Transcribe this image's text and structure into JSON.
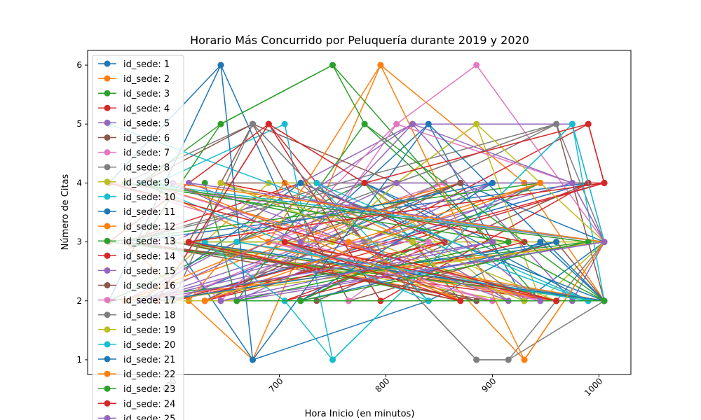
{
  "chart_data": {
    "type": "line",
    "title": "Horario Más Concurrido por Peluquería durante 2019 y 2020",
    "xlabel": "Hora Inicio (en minutos)",
    "ylabel": "Número de Citas",
    "xlim": [
      520,
      1030
    ],
    "ylim": [
      0.75,
      6.25
    ],
    "x_ticks": [
      600,
      700,
      800,
      900,
      1000
    ],
    "x_tick_labels": [
      "600",
      "700",
      "800",
      "900",
      "1000"
    ],
    "y_ticks": [
      1,
      2,
      3,
      4,
      5,
      6
    ],
    "y_tick_labels": [
      "1",
      "2",
      "3",
      "4",
      "5",
      "6"
    ],
    "x_tick_rotation": 45,
    "grid": false,
    "legend_loc": "upper-left",
    "colors": [
      "#1f77b4",
      "#ff7f0e",
      "#2ca02c",
      "#d62728",
      "#9467bd",
      "#8c564b",
      "#e377c2",
      "#7f7f7f",
      "#bcbd22",
      "#17becf"
    ],
    "series": [
      {
        "name": "id_sede: 1",
        "x": [
          540,
          645,
          720,
          840,
          930,
          1005,
          870,
          600,
          990,
          555
        ],
        "y": [
          2,
          6,
          3,
          5,
          2,
          3,
          4,
          2,
          4,
          3
        ]
      },
      {
        "name": "id_sede: 2",
        "x": [
          555,
          675,
          795,
          930,
          1005,
          690,
          570,
          960,
          615,
          885
        ],
        "y": [
          3,
          1,
          6,
          4,
          2,
          3,
          4,
          2,
          3,
          2
        ]
      },
      {
        "name": "id_sede: 3",
        "x": [
          570,
          645,
          750,
          945,
          1005,
          600,
          870,
          780,
          540,
          990
        ],
        "y": [
          4,
          5,
          6,
          2,
          2,
          3,
          2,
          4,
          2,
          3
        ]
      },
      {
        "name": "id_sede: 4",
        "x": [
          585,
          690,
          780,
          990,
          1005,
          630,
          855,
          720,
          555,
          960
        ],
        "y": [
          2,
          5,
          3,
          5,
          4,
          2,
          3,
          4,
          3,
          2
        ]
      },
      {
        "name": "id_sede: 5",
        "x": [
          600,
          720,
          825,
          975,
          1005,
          660,
          900,
          570,
          810,
          945
        ],
        "y": [
          3,
          4,
          5,
          2,
          3,
          2,
          4,
          2,
          3,
          4
        ]
      },
      {
        "name": "id_sede: 6",
        "x": [
          615,
          675,
          810,
          960,
          1005,
          555,
          900,
          735,
          990,
          645
        ],
        "y": [
          3,
          5,
          4,
          5,
          2,
          3,
          2,
          2,
          4,
          4
        ]
      },
      {
        "name": "id_sede: 7",
        "x": [
          630,
          735,
          810,
          885,
          1005,
          570,
          945,
          690,
          855,
          600
        ],
        "y": [
          2,
          3,
          5,
          6,
          3,
          4,
          2,
          3,
          4,
          2
        ]
      },
      {
        "name": "id_sede: 8",
        "x": [
          555,
          675,
          780,
          885,
          915,
          1005,
          960,
          630,
          840,
          720
        ],
        "y": [
          4,
          5,
          3,
          1,
          1,
          3,
          5,
          2,
          2,
          4
        ]
      },
      {
        "name": "id_sede: 9",
        "x": [
          570,
          690,
          810,
          885,
          945,
          1005,
          720,
          600,
          915,
          780
        ],
        "y": [
          2,
          4,
          4,
          5,
          2,
          3,
          3,
          3,
          2,
          4
        ]
      },
      {
        "name": "id_sede: 10",
        "x": [
          585,
          705,
          750,
          975,
          1005,
          615,
          825,
          660,
          990,
          540
        ],
        "y": [
          4,
          5,
          1,
          5,
          2,
          3,
          3,
          3,
          2,
          5
        ]
      },
      {
        "name": "id_sede: 11",
        "x": [
          600,
          675,
          840,
          945,
          1005,
          720,
          570,
          900,
          780,
          990
        ],
        "y": [
          3,
          1,
          2,
          3,
          2,
          4,
          2,
          3,
          4,
          2
        ]
      },
      {
        "name": "id_sede: 12",
        "x": [
          615,
          705,
          825,
          930,
          1005,
          555,
          870,
          660,
          960,
          750
        ],
        "y": [
          2,
          4,
          3,
          1,
          3,
          2,
          4,
          3,
          2,
          3
        ]
      },
      {
        "name": "id_sede: 13",
        "x": [
          630,
          660,
          780,
          900,
          1005,
          540,
          945,
          720,
          840,
          585
        ],
        "y": [
          4,
          2,
          5,
          3,
          2,
          3,
          4,
          2,
          3,
          4
        ]
      },
      {
        "name": "id_sede: 14",
        "x": [
          540,
          690,
          795,
          990,
          1005,
          600,
          855,
          705,
          930,
          645
        ],
        "y": [
          3,
          5,
          2,
          4,
          4,
          2,
          3,
          2,
          3,
          4
        ]
      },
      {
        "name": "id_sede: 15",
        "x": [
          555,
          660,
          825,
          975,
          1005,
          615,
          915,
          735,
          975,
          570
        ],
        "y": [
          2,
          3,
          5,
          5,
          3,
          4,
          2,
          4,
          4,
          2
        ]
      },
      {
        "name": "id_sede: 16",
        "x": [
          570,
          675,
          765,
          960,
          1005,
          630,
          870,
          705,
          885,
          600
        ],
        "y": [
          4,
          5,
          2,
          3,
          2,
          2,
          4,
          3,
          2,
          3
        ]
      },
      {
        "name": "id_sede: 17",
        "x": [
          585,
          645,
          810,
          975,
          1005,
          540,
          900,
          690,
          840,
          765
        ],
        "y": [
          3,
          2,
          5,
          4,
          3,
          4,
          2,
          3,
          3,
          2
        ]
      },
      {
        "name": "id_sede: 18",
        "x": [
          600,
          675,
          885,
          915,
          1005,
          660,
          960,
          555,
          780,
          930
        ],
        "y": [
          2,
          5,
          1,
          1,
          2,
          3,
          5,
          3,
          4,
          2
        ]
      },
      {
        "name": "id_sede: 19",
        "x": [
          615,
          750,
          810,
          885,
          1005,
          585,
          930,
          645,
          825,
          960
        ],
        "y": [
          3,
          3,
          4,
          5,
          3,
          2,
          2,
          4,
          3,
          2
        ]
      },
      {
        "name": "id_sede: 20",
        "x": [
          630,
          705,
          750,
          975,
          1005,
          570,
          840,
          735,
          990,
          660
        ],
        "y": [
          3,
          2,
          1,
          5,
          3,
          4,
          2,
          4,
          2,
          3
        ]
      },
      {
        "name": "id_sede: 21",
        "x": [
          540,
          645,
          675,
          840,
          1005,
          615,
          900,
          720,
          960,
          585
        ],
        "y": [
          4,
          6,
          1,
          5,
          2,
          3,
          4,
          2,
          3,
          2
        ]
      },
      {
        "name": "id_sede: 22",
        "x": [
          555,
          690,
          795,
          930,
          1005,
          600,
          870,
          765,
          945,
          630
        ],
        "y": [
          2,
          3,
          6,
          1,
          3,
          4,
          2,
          3,
          4,
          2
        ]
      },
      {
        "name": "id_sede: 23",
        "x": [
          570,
          645,
          750,
          780,
          1005,
          660,
          915,
          555,
          990,
          720
        ],
        "y": [
          3,
          5,
          6,
          5,
          2,
          2,
          3,
          4,
          3,
          2
        ]
      },
      {
        "name": "id_sede: 24",
        "x": [
          585,
          690,
          780,
          990,
          1005,
          615,
          870,
          705,
          960,
          540
        ],
        "y": [
          2,
          5,
          4,
          5,
          4,
          3,
          2,
          3,
          2,
          4
        ]
      },
      {
        "name": "id_sede: 25",
        "x": [
          600,
          720,
          825,
          975,
          1005,
          645,
          900,
          570,
          810,
          945
        ],
        "y": [
          4,
          3,
          5,
          4,
          3,
          2,
          3,
          2,
          4,
          2
        ]
      }
    ]
  }
}
